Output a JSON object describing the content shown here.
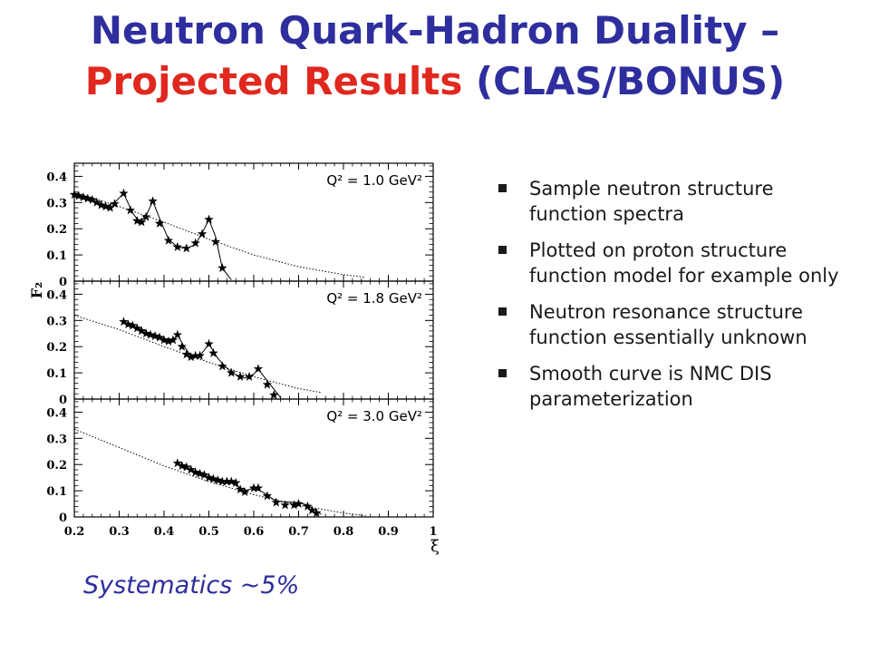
{
  "slide": {
    "title_line1": "Neutron Quark-Hadron Duality –",
    "title_line2_red": "Projected Results",
    "title_line2_blue": "(CLAS/BONUS)",
    "bullets": [
      "Sample neutron structure function spectra",
      "Plotted on proton structure function model for example only",
      "Neutron resonance structure function essentially unknown",
      "Smooth curve is NMC DIS parameterization"
    ],
    "systematics": "Systematics ~5%",
    "colors": {
      "blue": "#2e2e9e",
      "red": "#e0281f"
    }
  },
  "chart_data": {
    "type": "scatter",
    "xlabel": "ξ",
    "ylabel": "F₂",
    "xlim": [
      0.2,
      1.0
    ],
    "ylim": [
      0,
      0.45
    ],
    "x_ticks": [
      "0.2",
      "0.3",
      "0.4",
      "0.5",
      "0.6",
      "0.7",
      "0.8",
      "0.9",
      "1"
    ],
    "y_ticks": [
      "0",
      "0.1",
      "0.2",
      "0.3",
      "0.4"
    ],
    "panels": [
      {
        "label": "Q² = 1.0 GeV²",
        "dis_curve": [
          [
            0.2,
            0.34
          ],
          [
            0.3,
            0.285
          ],
          [
            0.4,
            0.225
          ],
          [
            0.5,
            0.16
          ],
          [
            0.6,
            0.1
          ],
          [
            0.7,
            0.055
          ],
          [
            0.8,
            0.025
          ],
          [
            0.85,
            0.015
          ]
        ],
        "resonance_curve": [
          [
            0.2,
            0.33
          ],
          [
            0.24,
            0.31
          ],
          [
            0.27,
            0.285
          ],
          [
            0.29,
            0.3
          ],
          [
            0.31,
            0.335
          ],
          [
            0.33,
            0.26
          ],
          [
            0.345,
            0.225
          ],
          [
            0.36,
            0.25
          ],
          [
            0.375,
            0.305
          ],
          [
            0.39,
            0.24
          ],
          [
            0.41,
            0.16
          ],
          [
            0.43,
            0.13
          ],
          [
            0.45,
            0.125
          ],
          [
            0.47,
            0.14
          ],
          [
            0.49,
            0.2
          ],
          [
            0.5,
            0.235
          ],
          [
            0.515,
            0.17
          ],
          [
            0.53,
            0.05
          ],
          [
            0.55,
            0.005
          ]
        ],
        "points": [
          [
            0.2,
            0.33
          ],
          [
            0.21,
            0.325
          ],
          [
            0.22,
            0.32
          ],
          [
            0.23,
            0.315
          ],
          [
            0.24,
            0.31
          ],
          [
            0.25,
            0.3
          ],
          [
            0.26,
            0.29
          ],
          [
            0.27,
            0.285
          ],
          [
            0.28,
            0.28
          ],
          [
            0.29,
            0.295
          ],
          [
            0.31,
            0.335
          ],
          [
            0.325,
            0.27
          ],
          [
            0.34,
            0.23
          ],
          [
            0.35,
            0.225
          ],
          [
            0.36,
            0.245
          ],
          [
            0.375,
            0.305
          ],
          [
            0.39,
            0.22
          ],
          [
            0.41,
            0.155
          ],
          [
            0.43,
            0.13
          ],
          [
            0.45,
            0.125
          ],
          [
            0.47,
            0.145
          ],
          [
            0.485,
            0.18
          ],
          [
            0.5,
            0.235
          ],
          [
            0.515,
            0.15
          ],
          [
            0.53,
            0.05
          ]
        ]
      },
      {
        "label": "Q² = 1.8 GeV²",
        "dis_curve": [
          [
            0.2,
            0.32
          ],
          [
            0.3,
            0.265
          ],
          [
            0.4,
            0.2
          ],
          [
            0.5,
            0.14
          ],
          [
            0.6,
            0.085
          ],
          [
            0.7,
            0.04
          ],
          [
            0.75,
            0.025
          ]
        ],
        "resonance_curve": [
          [
            0.31,
            0.295
          ],
          [
            0.35,
            0.265
          ],
          [
            0.39,
            0.235
          ],
          [
            0.42,
            0.225
          ],
          [
            0.43,
            0.245
          ],
          [
            0.445,
            0.2
          ],
          [
            0.46,
            0.165
          ],
          [
            0.48,
            0.165
          ],
          [
            0.5,
            0.21
          ],
          [
            0.52,
            0.155
          ],
          [
            0.55,
            0.1
          ],
          [
            0.58,
            0.08
          ],
          [
            0.6,
            0.095
          ],
          [
            0.61,
            0.115
          ],
          [
            0.63,
            0.07
          ],
          [
            0.66,
            0.005
          ]
        ],
        "points": [
          [
            0.31,
            0.295
          ],
          [
            0.32,
            0.285
          ],
          [
            0.33,
            0.28
          ],
          [
            0.34,
            0.27
          ],
          [
            0.35,
            0.26
          ],
          [
            0.36,
            0.25
          ],
          [
            0.37,
            0.245
          ],
          [
            0.38,
            0.24
          ],
          [
            0.39,
            0.235
          ],
          [
            0.4,
            0.225
          ],
          [
            0.41,
            0.22
          ],
          [
            0.42,
            0.225
          ],
          [
            0.43,
            0.245
          ],
          [
            0.44,
            0.2
          ],
          [
            0.45,
            0.17
          ],
          [
            0.46,
            0.16
          ],
          [
            0.47,
            0.165
          ],
          [
            0.48,
            0.165
          ],
          [
            0.5,
            0.21
          ],
          [
            0.51,
            0.175
          ],
          [
            0.53,
            0.125
          ],
          [
            0.55,
            0.1
          ],
          [
            0.57,
            0.085
          ],
          [
            0.59,
            0.085
          ],
          [
            0.61,
            0.115
          ],
          [
            0.63,
            0.055
          ],
          [
            0.645,
            0.015
          ]
        ]
      },
      {
        "label": "Q² = 3.0 GeV²",
        "dis_curve": [
          [
            0.2,
            0.335
          ],
          [
            0.3,
            0.265
          ],
          [
            0.4,
            0.195
          ],
          [
            0.5,
            0.135
          ],
          [
            0.6,
            0.085
          ],
          [
            0.7,
            0.045
          ],
          [
            0.8,
            0.015
          ],
          [
            0.85,
            0.005
          ]
        ],
        "resonance_curve": [
          [
            0.43,
            0.205
          ],
          [
            0.46,
            0.18
          ],
          [
            0.5,
            0.15
          ],
          [
            0.55,
            0.13
          ],
          [
            0.58,
            0.1
          ],
          [
            0.6,
            0.11
          ],
          [
            0.62,
            0.095
          ],
          [
            0.65,
            0.06
          ],
          [
            0.7,
            0.055
          ],
          [
            0.72,
            0.045
          ],
          [
            0.75,
            0.01
          ]
        ],
        "points": [
          [
            0.43,
            0.205
          ],
          [
            0.44,
            0.195
          ],
          [
            0.45,
            0.19
          ],
          [
            0.46,
            0.18
          ],
          [
            0.47,
            0.17
          ],
          [
            0.48,
            0.165
          ],
          [
            0.49,
            0.16
          ],
          [
            0.5,
            0.15
          ],
          [
            0.51,
            0.145
          ],
          [
            0.52,
            0.14
          ],
          [
            0.53,
            0.135
          ],
          [
            0.54,
            0.135
          ],
          [
            0.55,
            0.135
          ],
          [
            0.56,
            0.13
          ],
          [
            0.57,
            0.105
          ],
          [
            0.58,
            0.095
          ],
          [
            0.6,
            0.11
          ],
          [
            0.61,
            0.11
          ],
          [
            0.63,
            0.08
          ],
          [
            0.65,
            0.055
          ],
          [
            0.67,
            0.045
          ],
          [
            0.69,
            0.045
          ],
          [
            0.7,
            0.05
          ],
          [
            0.72,
            0.04
          ],
          [
            0.73,
            0.025
          ],
          [
            0.74,
            0.015
          ]
        ]
      }
    ]
  }
}
